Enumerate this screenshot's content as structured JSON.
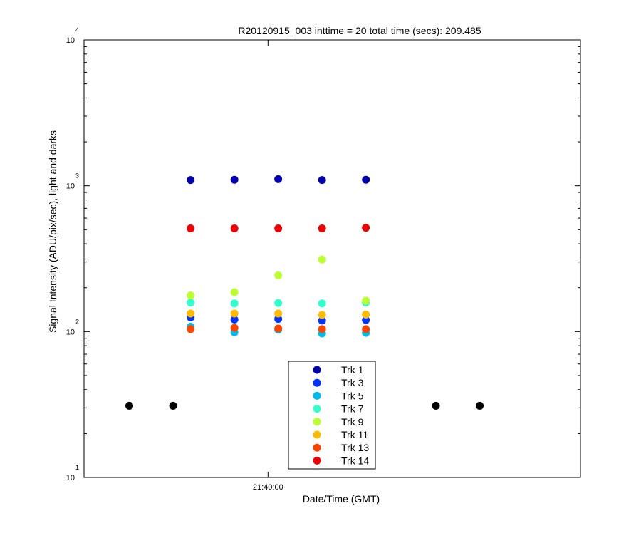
{
  "chart_data": {
    "type": "scatter",
    "title": "R20120915_003 inttime = 20 total time (secs): 209.485",
    "xlabel": "Date/Time (GMT)",
    "ylabel": "Signal Intensity (ADU/pix/sec), light and darks",
    "yscale": "log",
    "ylim": [
      10,
      10000
    ],
    "xlim": [
      "21:37:54",
      "21:43:34"
    ],
    "x_ticks": [
      {
        "value": "21:40:00",
        "label": "21:40:00"
      }
    ],
    "y_ticks": [
      {
        "value": 10,
        "base": "10",
        "exp": "1"
      },
      {
        "value": 100,
        "base": "10",
        "exp": "2"
      },
      {
        "value": 1000,
        "base": "10",
        "exp": "3"
      },
      {
        "value": 10000,
        "base": "10",
        "exp": "4"
      }
    ],
    "grid": false,
    "legend_position": "bottom-center",
    "times": [
      "21:39:07",
      "21:39:37",
      "21:40:07",
      "21:40:37",
      "21:41:07"
    ],
    "series": [
      {
        "name": "Trk 1",
        "color": "#0000AA",
        "values": [
          1095,
          1100,
          1110,
          1095,
          1100
        ]
      },
      {
        "name": "Trk 3",
        "color": "#0033FF",
        "values": [
          125,
          121,
          122,
          119,
          120
        ]
      },
      {
        "name": "Trk 5",
        "color": "#00BBEE",
        "values": [
          108,
          99,
          103,
          97,
          98
        ]
      },
      {
        "name": "Trk 7",
        "color": "#33FFCC",
        "values": [
          158,
          156,
          157,
          156,
          158
        ]
      },
      {
        "name": "Trk 9",
        "color": "#BBFF33",
        "values": [
          177,
          186,
          243,
          312,
          163
        ]
      },
      {
        "name": "Trk 11",
        "color": "#FFBB00",
        "values": [
          133,
          133,
          133,
          130,
          131
        ]
      },
      {
        "name": "Trk 13",
        "color": "#FF4400",
        "values": [
          104,
          106,
          105,
          104,
          104
        ]
      },
      {
        "name": "Trk 14",
        "color": "#EE0000",
        "values": [
          510,
          510,
          510,
          510,
          515
        ]
      }
    ],
    "darks": {
      "color": "#000000",
      "value": 31,
      "times": [
        "21:38:25",
        "21:38:55",
        "21:41:55",
        "21:42:25"
      ]
    }
  }
}
